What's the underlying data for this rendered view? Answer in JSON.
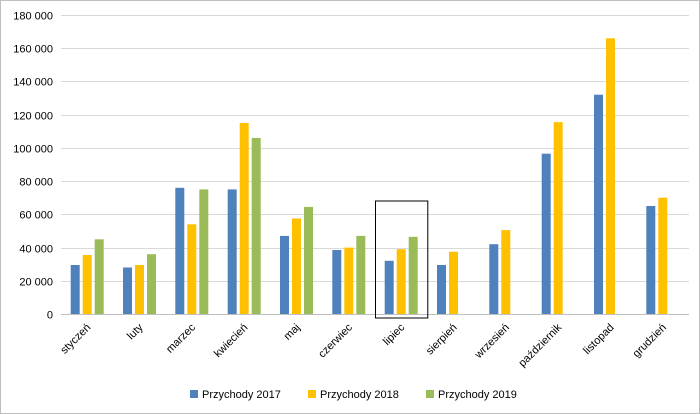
{
  "chart_data": {
    "type": "bar",
    "title": "",
    "xlabel": "",
    "ylabel": "",
    "categories": [
      "styczeń",
      "luty",
      "marzec",
      "kwiecień",
      "maj",
      "czerwiec",
      "lipiec",
      "sierpień",
      "wrzesień",
      "październik",
      "listopad",
      "grudzień"
    ],
    "series": [
      {
        "name": "Przychody 2017",
        "color": "#4f81bd",
        "values": [
          29500,
          28000,
          76000,
          75000,
          47000,
          38500,
          32000,
          29500,
          42000,
          96500,
          132000,
          65000
        ]
      },
      {
        "name": "Przychody 2018",
        "color": "#ffc000",
        "values": [
          35500,
          29500,
          54000,
          115000,
          57500,
          40000,
          39000,
          37500,
          50500,
          115500,
          166000,
          70000
        ]
      },
      {
        "name": "Przychody 2019",
        "color": "#9bbb59",
        "values": [
          45000,
          36000,
          75000,
          106000,
          64500,
          47000,
          46500,
          null,
          null,
          null,
          null,
          null
        ]
      }
    ],
    "ylim": [
      0,
      180000
    ],
    "yticks": [
      0,
      20000,
      40000,
      60000,
      80000,
      100000,
      120000,
      140000,
      160000,
      180000
    ],
    "ytick_labels": [
      "0",
      "20 000",
      "40 000",
      "60 000",
      "80 000",
      "100 000",
      "120 000",
      "140 000",
      "160 000",
      "180 000"
    ],
    "grid": true,
    "legend_position": "bottom",
    "highlighted_category": "lipiec"
  }
}
